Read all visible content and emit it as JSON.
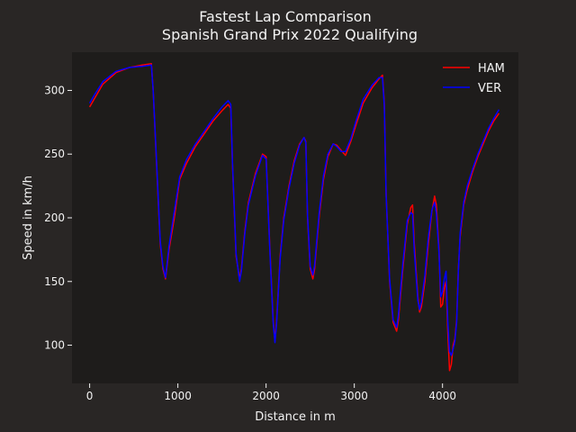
{
  "colors": {
    "figure_bg": "#292625",
    "axes_bg": "#1e1c1b",
    "text": "#f2f2f2",
    "ham": "#ff0000",
    "ver": "#0000ff"
  },
  "chart_data": {
    "type": "line",
    "title": "Fastest Lap Comparison",
    "subtitle": "Spanish Grand Prix 2022 Qualifying",
    "xlabel": "Distance in m",
    "ylabel": "Speed in km/h",
    "xlim": [
      -200,
      4860
    ],
    "ylim": [
      70,
      330
    ],
    "xticks": [
      0,
      1000,
      2000,
      3000,
      4000
    ],
    "yticks": [
      100,
      150,
      200,
      250,
      300
    ],
    "grid": false,
    "legend": "top-right",
    "series": [
      {
        "name": "HAM",
        "color": "#ff0000",
        "x": [
          0,
          50,
          150,
          300,
          450,
          600,
          700,
          720,
          760,
          800,
          830,
          860,
          900,
          960,
          1020,
          1100,
          1200,
          1300,
          1400,
          1500,
          1570,
          1600,
          1620,
          1660,
          1700,
          1720,
          1760,
          1800,
          1880,
          1960,
          2000,
          2040,
          2080,
          2100,
          2120,
          2160,
          2200,
          2260,
          2320,
          2380,
          2430,
          2450,
          2470,
          2500,
          2530,
          2550,
          2600,
          2650,
          2700,
          2760,
          2800,
          2850,
          2900,
          2960,
          3020,
          3100,
          3200,
          3280,
          3320,
          3340,
          3360,
          3400,
          3440,
          3480,
          3500,
          3550,
          3600,
          3640,
          3660,
          3680,
          3720,
          3740,
          3760,
          3800,
          3840,
          3880,
          3910,
          3930,
          3960,
          3980,
          4000,
          4020,
          4040,
          4060,
          4080,
          4100,
          4120,
          4140,
          4160,
          4180,
          4200,
          4240,
          4280,
          4340,
          4400,
          4460,
          4520,
          4580,
          4640
        ],
        "y": [
          287,
          293,
          305,
          314,
          318,
          320,
          321,
          300,
          240,
          180,
          160,
          152,
          175,
          200,
          230,
          243,
          256,
          266,
          276,
          284,
          289,
          286,
          240,
          170,
          152,
          160,
          190,
          212,
          235,
          250,
          248,
          180,
          120,
          103,
          120,
          170,
          200,
          225,
          245,
          258,
          263,
          260,
          200,
          160,
          152,
          160,
          200,
          230,
          248,
          258,
          257,
          253,
          249,
          260,
          273,
          290,
          302,
          309,
          312,
          290,
          220,
          150,
          118,
          111,
          120,
          160,
          195,
          208,
          210,
          180,
          138,
          126,
          130,
          150,
          180,
          205,
          217,
          210,
          175,
          130,
          132,
          145,
          150,
          110,
          80,
          85,
          100,
          105,
          120,
          160,
          185,
          210,
          222,
          236,
          248,
          258,
          268,
          276,
          282
        ]
      },
      {
        "name": "VER",
        "color": "#0000ff",
        "x": [
          0,
          50,
          150,
          300,
          450,
          600,
          700,
          720,
          760,
          800,
          830,
          860,
          900,
          960,
          1020,
          1100,
          1200,
          1300,
          1400,
          1500,
          1570,
          1600,
          1620,
          1660,
          1700,
          1720,
          1760,
          1800,
          1880,
          1960,
          2000,
          2040,
          2080,
          2100,
          2120,
          2160,
          2200,
          2260,
          2320,
          2380,
          2430,
          2450,
          2470,
          2500,
          2530,
          2550,
          2600,
          2650,
          2700,
          2760,
          2800,
          2850,
          2900,
          2960,
          3020,
          3100,
          3200,
          3280,
          3320,
          3340,
          3360,
          3400,
          3440,
          3480,
          3500,
          3550,
          3600,
          3640,
          3660,
          3680,
          3720,
          3740,
          3760,
          3800,
          3840,
          3880,
          3910,
          3930,
          3960,
          3980,
          4000,
          4020,
          4040,
          4060,
          4080,
          4100,
          4120,
          4140,
          4160,
          4180,
          4200,
          4240,
          4280,
          4340,
          4400,
          4460,
          4520,
          4580,
          4640
        ],
        "y": [
          290,
          296,
          307,
          315,
          318,
          319,
          320,
          300,
          242,
          182,
          162,
          153,
          178,
          205,
          232,
          246,
          258,
          268,
          278,
          287,
          292,
          289,
          242,
          172,
          150,
          158,
          188,
          210,
          233,
          249,
          246,
          178,
          118,
          102,
          118,
          168,
          198,
          223,
          243,
          257,
          263,
          259,
          202,
          162,
          155,
          163,
          203,
          233,
          250,
          258,
          256,
          252,
          252,
          262,
          276,
          293,
          304,
          310,
          310,
          288,
          218,
          152,
          120,
          114,
          124,
          164,
          198,
          204,
          203,
          174,
          135,
          128,
          134,
          155,
          185,
          206,
          212,
          204,
          172,
          138,
          142,
          152,
          158,
          118,
          95,
          92,
          97,
          103,
          118,
          158,
          188,
          212,
          225,
          238,
          250,
          260,
          270,
          278,
          285
        ]
      }
    ]
  }
}
